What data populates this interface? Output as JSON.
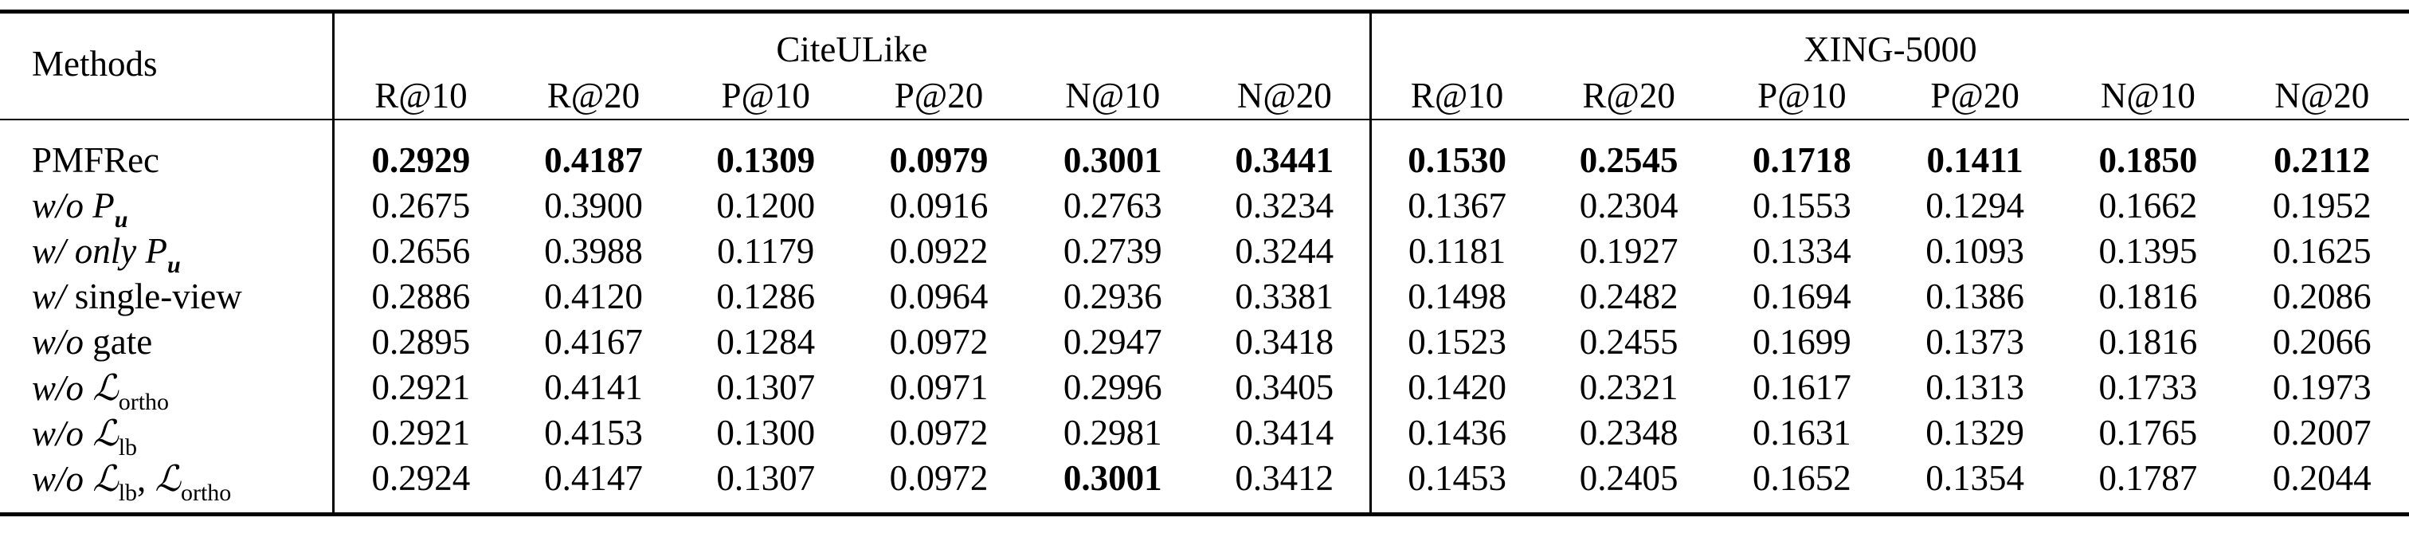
{
  "table": {
    "method_header": "Methods",
    "groups": [
      "CiteULike",
      "XING-5000"
    ],
    "metrics": [
      "R@10",
      "R@20",
      "P@10",
      "P@20",
      "N@10",
      "N@20",
      "R@10",
      "R@20",
      "P@10",
      "P@20",
      "N@10",
      "N@20"
    ],
    "rows": [
      {
        "prefix": "",
        "label": "PMFRec",
        "sym": "",
        "sub": "",
        "sym2": "",
        "sub2": "",
        "sep": "",
        "values": [
          "0.2929",
          "0.4187",
          "0.1309",
          "0.0979",
          "0.3001",
          "0.3441",
          "0.1530",
          "0.2545",
          "0.1718",
          "0.1411",
          "0.1850",
          "0.2112"
        ],
        "bold": [
          true,
          true,
          true,
          true,
          true,
          true,
          true,
          true,
          true,
          true,
          true,
          true
        ]
      },
      {
        "prefix": "w/o",
        "label": "",
        "sym": "P",
        "sub": "u",
        "sym2": "",
        "sub2": "",
        "sep": "",
        "values": [
          "0.2675",
          "0.3900",
          "0.1200",
          "0.0916",
          "0.2763",
          "0.3234",
          "0.1367",
          "0.2304",
          "0.1553",
          "0.1294",
          "0.1662",
          "0.1952"
        ],
        "bold": []
      },
      {
        "prefix": "w/ only",
        "label": "",
        "sym": "P",
        "sub": "u",
        "sym2": "",
        "sub2": "",
        "sep": "",
        "values": [
          "0.2656",
          "0.3988",
          "0.1179",
          "0.0922",
          "0.2739",
          "0.3244",
          "0.1181",
          "0.1927",
          "0.1334",
          "0.1093",
          "0.1395",
          "0.1625"
        ],
        "bold": []
      },
      {
        "prefix": "w/",
        "label": "single-view",
        "sym": "",
        "sub": "",
        "sym2": "",
        "sub2": "",
        "sep": "",
        "values": [
          "0.2886",
          "0.4120",
          "0.1286",
          "0.0964",
          "0.2936",
          "0.3381",
          "0.1498",
          "0.2482",
          "0.1694",
          "0.1386",
          "0.1816",
          "0.2086"
        ],
        "bold": []
      },
      {
        "prefix": "w/o",
        "label": "gate",
        "sym": "",
        "sub": "",
        "sym2": "",
        "sub2": "",
        "sep": "",
        "values": [
          "0.2895",
          "0.4167",
          "0.1284",
          "0.0972",
          "0.2947",
          "0.3418",
          "0.1523",
          "0.2455",
          "0.1699",
          "0.1373",
          "0.1816",
          "0.2066"
        ],
        "bold": []
      },
      {
        "prefix": "w/o",
        "label": "",
        "sym": "ℒ",
        "sub": "ortho",
        "sym2": "",
        "sub2": "",
        "sep": "",
        "values": [
          "0.2921",
          "0.4141",
          "0.1307",
          "0.0971",
          "0.2996",
          "0.3405",
          "0.1420",
          "0.2321",
          "0.1617",
          "0.1313",
          "0.1733",
          "0.1973"
        ],
        "bold": []
      },
      {
        "prefix": "w/o",
        "label": "",
        "sym": "ℒ",
        "sub": "lb",
        "sym2": "",
        "sub2": "",
        "sep": "",
        "values": [
          "0.2921",
          "0.4153",
          "0.1300",
          "0.0972",
          "0.2981",
          "0.3414",
          "0.1436",
          "0.2348",
          "0.1631",
          "0.1329",
          "0.1765",
          "0.2007"
        ],
        "bold": []
      },
      {
        "prefix": "w/o",
        "label": "",
        "sym": "ℒ",
        "sub": "lb",
        "sep": ", ",
        "sym2": "ℒ",
        "sub2": "ortho",
        "values": [
          "0.2924",
          "0.4147",
          "0.1307",
          "0.0972",
          "0.3001",
          "0.3412",
          "0.1453",
          "0.2405",
          "0.1652",
          "0.1354",
          "0.1787",
          "0.2044"
        ],
        "bold": [
          false,
          false,
          false,
          false,
          true,
          false,
          false,
          false,
          false,
          false,
          false,
          false
        ]
      }
    ]
  }
}
